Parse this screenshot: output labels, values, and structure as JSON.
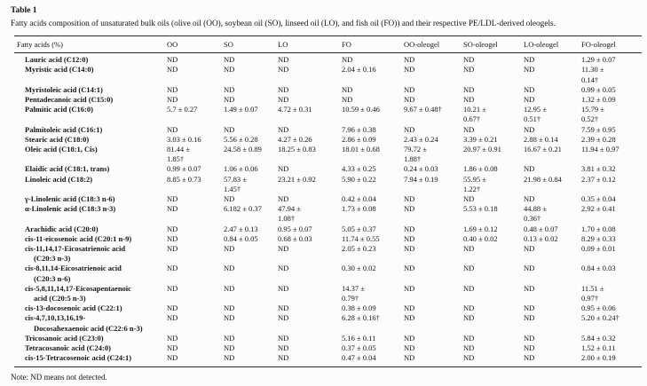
{
  "table_label": "Table 1",
  "caption": "Fatty acids composition of unsaturated bulk oils (olive oil (OO), soybean oil (SO), linseed oil (LO), and fish oil (FO)) and their respective PE/LDL-derived oleogels.",
  "note": "Note: ND means not detected.",
  "table": {
    "columns": [
      "Fatty acids (%)",
      "OO",
      "SO",
      "LO",
      "FO",
      "OO-oleogel",
      "SO-oleogel",
      "LO-oleogel",
      "FO-oleogel"
    ],
    "rows": [
      {
        "name": "Lauric acid (C12:0)",
        "values": [
          "ND",
          "ND",
          "ND",
          "ND",
          "ND",
          "ND",
          "ND",
          "1.29 ± 0.07"
        ]
      },
      {
        "name": "Myristic acid (C14:0)",
        "values": [
          "ND",
          "ND",
          "ND",
          "2.04 ± 0.16",
          "ND",
          "ND",
          "ND",
          "11.30 ±\n0.14†"
        ]
      },
      {
        "name": "Myristoleic acid (C14:1)",
        "values": [
          "ND",
          "ND",
          "ND",
          "ND",
          "ND",
          "ND",
          "ND",
          "0.99 ± 0.05"
        ]
      },
      {
        "name": "Pentadecanoic acid (C15:0)",
        "values": [
          "ND",
          "ND",
          "ND",
          "ND",
          "ND",
          "ND",
          "ND",
          "1.32 ± 0.09"
        ]
      },
      {
        "name": "Palmitic acid (C16:0)",
        "values": [
          "5.7 ± 0.27",
          "1.49 ± 0.07",
          "4.72 ± 0.31",
          "10.59 ± 0.46",
          "9.67 ± 0.48†",
          "10.21 ±\n0.67†",
          "12.95 ±\n0.51†",
          "15.79 ±\n0.52†"
        ]
      },
      {
        "name": "Palmitoleic acid (C16:1)",
        "values": [
          "ND",
          "ND",
          "ND",
          "7.96 ± 0.38",
          "ND",
          "ND",
          "ND",
          "7.59 ± 0.95"
        ]
      },
      {
        "name": "Stearic acid (C18:0)",
        "values": [
          "3.03 ± 0.16",
          "5.56 ± 0.28",
          "4.27 ± 0.26",
          "2.86 ± 0.09",
          "2.43 ± 0.24",
          "3.39 ± 0.21",
          "2.88 ± 0.14",
          "2.39 ± 0.28"
        ]
      },
      {
        "name": "Oleic acid (C18:1, Cis)",
        "values": [
          "81.44 ±\n1.85†",
          "24.58 ± 0.89",
          "18.25 ± 0.83",
          "18.01 ± 0.68",
          "79.72 ±\n1.88†",
          "20.97 ± 0.91",
          "16.67 ± 0.21",
          "11.94 ± 0.97"
        ]
      },
      {
        "name": "Elaidic acid (C18:1, trans)",
        "values": [
          "0.99 ± 0.07",
          "1.06 ± 0.06",
          "ND",
          "4.33 ± 0.25",
          "0.24 ± 0.03",
          "1.86 ± 0.08",
          "ND",
          "3.81 ± 0.32"
        ]
      },
      {
        "name": "Linoleic acid (C18:2)",
        "values": [
          "8.85 ± 0.73",
          "57.83 ±\n1.45†",
          "23.21 ± 0.92",
          "5.90 ± 0.22",
          "7.94 ± 0.19",
          "55.95 ±\n1.22†",
          "21.98 ± 0.84",
          "2.37 ± 0.12"
        ]
      },
      {
        "name": "γ-Linolenic acid (C18:3 n-6)",
        "values": [
          "ND",
          "ND",
          "ND",
          "0.42 ± 0.04",
          "ND",
          "ND",
          "ND",
          "0.35 ± 0.04"
        ]
      },
      {
        "name": "α-Linolenic acid (C18:3 n-3)",
        "values": [
          "ND",
          "6.182 ± 0.37",
          "47.94 ±\n1.08†",
          "1.73 ± 0.08",
          "ND",
          "5.53 ± 0.18",
          "44.88 ±\n0.36†",
          "2.92 ± 0.41"
        ]
      },
      {
        "name": "Arachidic acid (C20:0)",
        "values": [
          "ND",
          "2.47 ± 0.13",
          "0.95 ± 0.07",
          "5.05 ± 0.37",
          "ND",
          "1.69 ± 0.12",
          "0.48 ± 0.07",
          "1.70 ± 0.08"
        ]
      },
      {
        "name": "cis-11-eicosenoic acid (C20:1 n-9)",
        "values": [
          "ND",
          "0.84 ± 0.05",
          "0.68 ± 0.03",
          "11.74 ± 0.55",
          "ND",
          "0.40 ± 0.02",
          "0.13 ± 0.02",
          "8.29 ± 0.33"
        ]
      },
      {
        "name": "cis-11,14,17-Eicosatrienoic acid\n(C20:3 n-3)",
        "values": [
          "ND",
          "ND",
          "ND",
          "2.05 ± 0.23",
          "ND",
          "ND",
          "ND",
          "0.09 ± 0.01"
        ]
      },
      {
        "name": "cis-8,11,14-Eicosatrienoic acid\n(C20:3 n-6)",
        "values": [
          "ND",
          "ND",
          "ND",
          "0.30 ± 0.02",
          "ND",
          "ND",
          "ND",
          "0.84 ± 0.03"
        ]
      },
      {
        "name": "cis-5,8,11,14,17-Eicosapentaenoic\nacid (C20:5 n-3)",
        "values": [
          "ND",
          "ND",
          "ND",
          "14.37 ±\n0.79†",
          "ND",
          "ND",
          "ND",
          "11.51 ±\n0.97†"
        ]
      },
      {
        "name": "cis-13-docosenoic acid (C22:1)",
        "values": [
          "ND",
          "ND",
          "ND",
          "0.38 ± 0.09",
          "ND",
          "ND",
          "ND",
          "0.95 ± 0.06"
        ]
      },
      {
        "name": "cis-4,7,10,13,16,19-\nDocosahexaenoic acid (C22:6 n-3)",
        "values": [
          "ND",
          "ND",
          "ND",
          "6.28 ± 0.16†",
          "ND",
          "ND",
          "ND",
          "5.20 ± 0.24†"
        ]
      },
      {
        "name": "Tricosanoic acid (C23:0)",
        "values": [
          "ND",
          "ND",
          "ND",
          "5.16 ± 0.11",
          "ND",
          "ND",
          "ND",
          "5.84 ± 0.32"
        ]
      },
      {
        "name": "Tetracosanoic acid (C24:0)",
        "values": [
          "ND",
          "ND",
          "ND",
          "0.37 ± 0.05",
          "ND",
          "ND",
          "ND",
          "1.52 ± 0.11"
        ]
      },
      {
        "name": "cis-15-Tetracosenoic acid (C24:1)",
        "values": [
          "ND",
          "ND",
          "ND",
          "0.47 ± 0.04",
          "ND",
          "ND",
          "ND",
          "2.00 ± 0.19"
        ]
      }
    ]
  }
}
